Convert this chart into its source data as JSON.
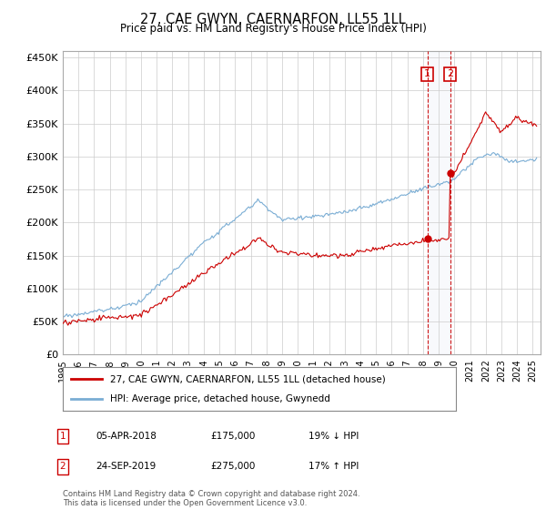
{
  "title": "27, CAE GWYN, CAERNARFON, LL55 1LL",
  "subtitle": "Price paid vs. HM Land Registry's House Price Index (HPI)",
  "ylabel_ticks": [
    "£0",
    "£50K",
    "£100K",
    "£150K",
    "£200K",
    "£250K",
    "£300K",
    "£350K",
    "£400K",
    "£450K"
  ],
  "ytick_values": [
    0,
    50000,
    100000,
    150000,
    200000,
    250000,
    300000,
    350000,
    400000,
    450000
  ],
  "ylim": [
    0,
    460000
  ],
  "xlim_start": 1995.0,
  "xlim_end": 2025.5,
  "hpi_color": "#7aadd4",
  "price_color": "#cc0000",
  "marker1_date": 2018.27,
  "marker1_price": 175000,
  "marker1_label": "05-APR-2018",
  "marker1_value": "£175,000",
  "marker1_note": "19% ↓ HPI",
  "marker2_date": 2019.73,
  "marker2_price": 275000,
  "marker2_label": "24-SEP-2019",
  "marker2_value": "£275,000",
  "marker2_note": "17% ↑ HPI",
  "legend_line1": "27, CAE GWYN, CAERNARFON, LL55 1LL (detached house)",
  "legend_line2": "HPI: Average price, detached house, Gwynedd",
  "footer": "Contains HM Land Registry data © Crown copyright and database right 2024.\nThis data is licensed under the Open Government Licence v3.0.",
  "background_color": "#ffffff",
  "grid_color": "#cccccc"
}
